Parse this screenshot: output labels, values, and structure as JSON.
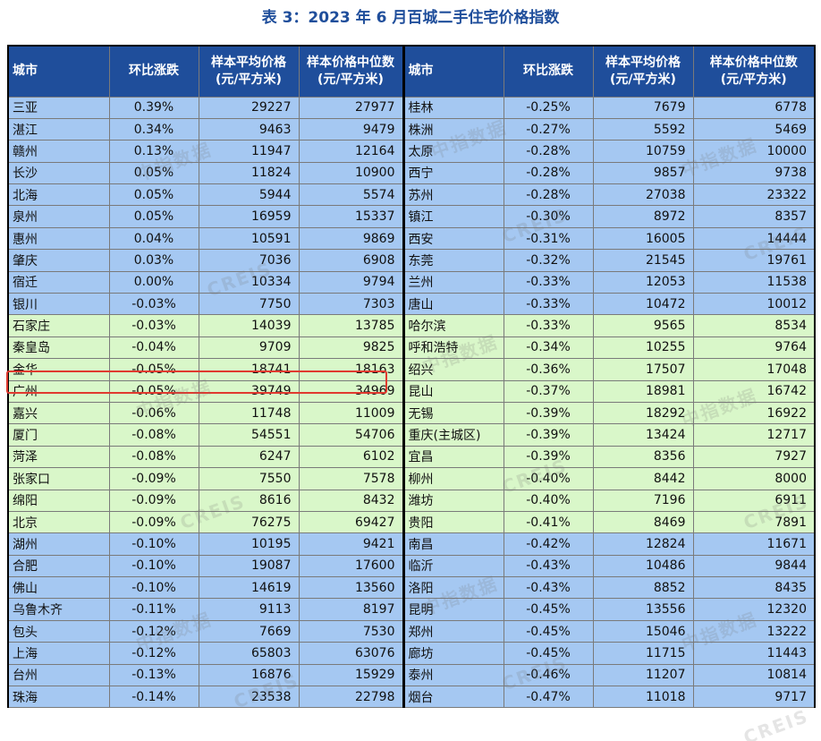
{
  "title": "表 3：2023 年 6 月百城二手住宅价格指数",
  "headers": {
    "city": "城市",
    "change": "环比涨跌",
    "avg_price": "样本平均价格",
    "median_price": "样本价格中位数",
    "unit": "(元/平方米)"
  },
  "watermark": {
    "cn": "中指数据",
    "en": "CREIS"
  },
  "colors": {
    "header": "#1f4e9b",
    "row_blue": "#a5c8f2",
    "row_green": "#d9f7c9",
    "highlight": "#e03a2f"
  },
  "highlighted_row": {
    "side": "left",
    "city": "金华"
  },
  "rows": [
    {
      "color": "blue",
      "left": {
        "city": "三亚",
        "change": "0.39%",
        "avg": "29227",
        "median": "27977"
      },
      "right": {
        "city": "桂林",
        "change": "-0.25%",
        "avg": "7679",
        "median": "6778"
      }
    },
    {
      "color": "blue",
      "left": {
        "city": "湛江",
        "change": "0.34%",
        "avg": "9463",
        "median": "9479"
      },
      "right": {
        "city": "株洲",
        "change": "-0.27%",
        "avg": "5592",
        "median": "5469"
      }
    },
    {
      "color": "blue",
      "left": {
        "city": "赣州",
        "change": "0.13%",
        "avg": "11947",
        "median": "12164"
      },
      "right": {
        "city": "太原",
        "change": "-0.28%",
        "avg": "10759",
        "median": "10000"
      }
    },
    {
      "color": "blue",
      "left": {
        "city": "长沙",
        "change": "0.05%",
        "avg": "11824",
        "median": "10900"
      },
      "right": {
        "city": "西宁",
        "change": "-0.28%",
        "avg": "9857",
        "median": "9738"
      }
    },
    {
      "color": "blue",
      "left": {
        "city": "北海",
        "change": "0.05%",
        "avg": "5944",
        "median": "5574"
      },
      "right": {
        "city": "苏州",
        "change": "-0.28%",
        "avg": "27038",
        "median": "23322"
      }
    },
    {
      "color": "blue",
      "left": {
        "city": "泉州",
        "change": "0.05%",
        "avg": "16959",
        "median": "15337"
      },
      "right": {
        "city": "镇江",
        "change": "-0.30%",
        "avg": "8972",
        "median": "8357"
      }
    },
    {
      "color": "blue",
      "left": {
        "city": "惠州",
        "change": "0.04%",
        "avg": "10591",
        "median": "9869"
      },
      "right": {
        "city": "西安",
        "change": "-0.31%",
        "avg": "16005",
        "median": "14444"
      }
    },
    {
      "color": "blue",
      "left": {
        "city": "肇庆",
        "change": "0.03%",
        "avg": "7036",
        "median": "6908"
      },
      "right": {
        "city": "东莞",
        "change": "-0.32%",
        "avg": "21545",
        "median": "19761"
      }
    },
    {
      "color": "blue",
      "left": {
        "city": "宿迁",
        "change": "0.00%",
        "avg": "10334",
        "median": "9794"
      },
      "right": {
        "city": "兰州",
        "change": "-0.33%",
        "avg": "12053",
        "median": "11538"
      }
    },
    {
      "color": "blue",
      "left": {
        "city": "银川",
        "change": "-0.03%",
        "avg": "7750",
        "median": "7303"
      },
      "right": {
        "city": "唐山",
        "change": "-0.33%",
        "avg": "10472",
        "median": "10012"
      }
    },
    {
      "color": "green",
      "left": {
        "city": "石家庄",
        "change": "-0.03%",
        "avg": "14039",
        "median": "13785"
      },
      "right": {
        "city": "哈尔滨",
        "change": "-0.33%",
        "avg": "9565",
        "median": "8534"
      }
    },
    {
      "color": "green",
      "left": {
        "city": "秦皇岛",
        "change": "-0.04%",
        "avg": "9709",
        "median": "9825"
      },
      "right": {
        "city": "呼和浩特",
        "change": "-0.34%",
        "avg": "10255",
        "median": "9764"
      }
    },
    {
      "color": "green",
      "left": {
        "city": "金华",
        "change": "-0.05%",
        "avg": "18741",
        "median": "18163"
      },
      "right": {
        "city": "绍兴",
        "change": "-0.36%",
        "avg": "17507",
        "median": "17048"
      }
    },
    {
      "color": "green",
      "left": {
        "city": "广州",
        "change": "-0.05%",
        "avg": "39749",
        "median": "34969"
      },
      "right": {
        "city": "昆山",
        "change": "-0.37%",
        "avg": "18981",
        "median": "16742"
      }
    },
    {
      "color": "green",
      "left": {
        "city": "嘉兴",
        "change": "-0.06%",
        "avg": "11748",
        "median": "11009"
      },
      "right": {
        "city": "无锡",
        "change": "-0.39%",
        "avg": "18292",
        "median": "16922"
      }
    },
    {
      "color": "green",
      "left": {
        "city": "厦门",
        "change": "-0.08%",
        "avg": "54551",
        "median": "54706"
      },
      "right": {
        "city": "重庆(主城区)",
        "change": "-0.39%",
        "avg": "13424",
        "median": "12717"
      }
    },
    {
      "color": "green",
      "left": {
        "city": "菏泽",
        "change": "-0.08%",
        "avg": "6247",
        "median": "6102"
      },
      "right": {
        "city": "宜昌",
        "change": "-0.39%",
        "avg": "8356",
        "median": "7927"
      }
    },
    {
      "color": "green",
      "left": {
        "city": "张家口",
        "change": "-0.09%",
        "avg": "7550",
        "median": "7578"
      },
      "right": {
        "city": "柳州",
        "change": "-0.40%",
        "avg": "8442",
        "median": "8000"
      }
    },
    {
      "color": "green",
      "left": {
        "city": "绵阳",
        "change": "-0.09%",
        "avg": "8616",
        "median": "8432"
      },
      "right": {
        "city": "潍坊",
        "change": "-0.40%",
        "avg": "7196",
        "median": "6911"
      }
    },
    {
      "color": "green",
      "left": {
        "city": "北京",
        "change": "-0.09%",
        "avg": "76275",
        "median": "69427"
      },
      "right": {
        "city": "贵阳",
        "change": "-0.41%",
        "avg": "8469",
        "median": "7891"
      }
    },
    {
      "color": "blue",
      "left": {
        "city": "湖州",
        "change": "-0.10%",
        "avg": "10195",
        "median": "9421"
      },
      "right": {
        "city": "南昌",
        "change": "-0.42%",
        "avg": "12824",
        "median": "11671"
      }
    },
    {
      "color": "blue",
      "left": {
        "city": "合肥",
        "change": "-0.10%",
        "avg": "19087",
        "median": "17600"
      },
      "right": {
        "city": "临沂",
        "change": "-0.43%",
        "avg": "10486",
        "median": "9844"
      }
    },
    {
      "color": "blue",
      "left": {
        "city": "佛山",
        "change": "-0.10%",
        "avg": "14619",
        "median": "13560"
      },
      "right": {
        "city": "洛阳",
        "change": "-0.43%",
        "avg": "8852",
        "median": "8435"
      }
    },
    {
      "color": "blue",
      "left": {
        "city": "乌鲁木齐",
        "change": "-0.11%",
        "avg": "9113",
        "median": "8197"
      },
      "right": {
        "city": "昆明",
        "change": "-0.45%",
        "avg": "13556",
        "median": "12320"
      }
    },
    {
      "color": "blue",
      "left": {
        "city": "包头",
        "change": "-0.12%",
        "avg": "7669",
        "median": "7530"
      },
      "right": {
        "city": "郑州",
        "change": "-0.45%",
        "avg": "15046",
        "median": "13222"
      }
    },
    {
      "color": "blue",
      "left": {
        "city": "上海",
        "change": "-0.12%",
        "avg": "65803",
        "median": "63076"
      },
      "right": {
        "city": "廊坊",
        "change": "-0.45%",
        "avg": "11715",
        "median": "11443"
      }
    },
    {
      "color": "blue",
      "left": {
        "city": "台州",
        "change": "-0.13%",
        "avg": "16876",
        "median": "15929"
      },
      "right": {
        "city": "泰州",
        "change": "-0.46%",
        "avg": "11207",
        "median": "10814"
      }
    },
    {
      "color": "blue",
      "left": {
        "city": "珠海",
        "change": "-0.14%",
        "avg": "23538",
        "median": "22798"
      },
      "right": {
        "city": "烟台",
        "change": "-0.47%",
        "avg": "11018",
        "median": "9717"
      }
    }
  ]
}
